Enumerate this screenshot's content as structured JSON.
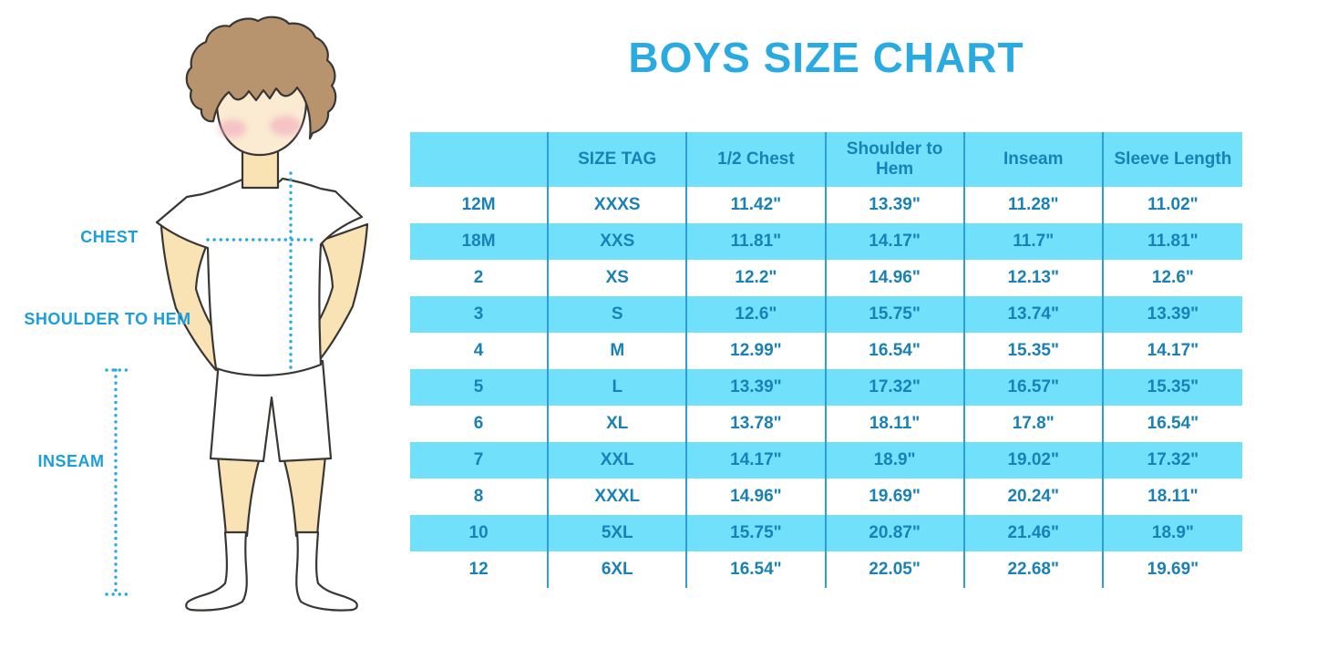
{
  "figure": {
    "chest_label": "CHEST",
    "shoulder_to_hem_label": "SHOULDER TO HEM",
    "inseam_label": "INSEAM"
  },
  "colors": {
    "title_blue": "#29ABE2",
    "label_blue": "#1B9FDC",
    "dotted_line": "#29ABE2",
    "stripe": "#71E0FB",
    "divider": "#2E9FD4",
    "cell_text": "#1981B8",
    "skin": "#F9E2B4",
    "hair": "#B7946E"
  },
  "chart_data": {
    "type": "table",
    "title": "BOYS SIZE CHART",
    "columns": [
      "",
      "SIZE TAG",
      "1/2 Chest",
      "Shoulder to Hem",
      "Inseam",
      "Sleeve Length"
    ],
    "rows": [
      [
        "12M",
        "XXXS",
        "11.42\"",
        "13.39\"",
        "11.28\"",
        "11.02\""
      ],
      [
        "18M",
        "XXS",
        "11.81\"",
        "14.17\"",
        "11.7\"",
        "11.81\""
      ],
      [
        "2",
        "XS",
        "12.2\"",
        "14.96\"",
        "12.13\"",
        "12.6\""
      ],
      [
        "3",
        "S",
        "12.6\"",
        "15.75\"",
        "13.74\"",
        "13.39\""
      ],
      [
        "4",
        "M",
        "12.99\"",
        "16.54\"",
        "15.35\"",
        "14.17\""
      ],
      [
        "5",
        "L",
        "13.39\"",
        "17.32\"",
        "16.57\"",
        "15.35\""
      ],
      [
        "6",
        "XL",
        "13.78\"",
        "18.11\"",
        "17.8\"",
        "16.54\""
      ],
      [
        "7",
        "XXL",
        "14.17\"",
        "18.9\"",
        "19.02\"",
        "17.32\""
      ],
      [
        "8",
        "XXXL",
        "14.96\"",
        "19.69\"",
        "20.24\"",
        "18.11\""
      ],
      [
        "10",
        "5XL",
        "15.75\"",
        "20.87\"",
        "21.46\"",
        "18.9\""
      ],
      [
        "12",
        "6XL",
        "16.54\"",
        "22.05\"",
        "22.68\"",
        "19.69\""
      ]
    ]
  }
}
